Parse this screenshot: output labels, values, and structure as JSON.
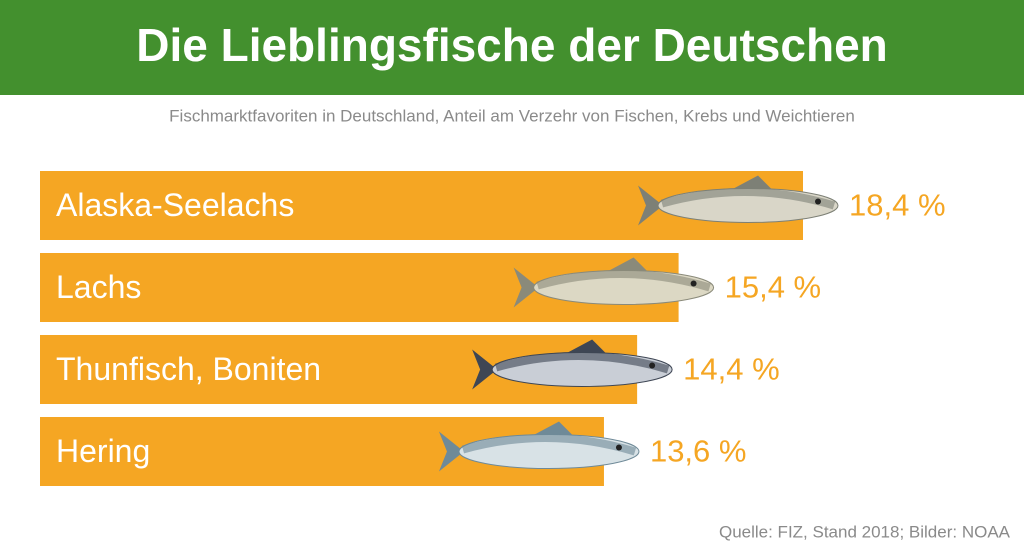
{
  "chart_data": {
    "type": "bar",
    "orientation": "horizontal",
    "title": "Die Lieblingsfische der Deutschen",
    "subtitle": "Fischmarktfavoriten in Deutschland, Anteil am Verzehr von Fischen, Krebs und Weichtieren",
    "categories": [
      "Alaska-Seelachs",
      "Lachs",
      "Thunfisch, Boniten",
      "Hering"
    ],
    "values": [
      18.4,
      15.4,
      14.4,
      13.6
    ],
    "value_labels": [
      "18,4 %",
      "15,4 %",
      "14,4 %",
      "13,6 %"
    ],
    "color": "#f5a623",
    "source": "Quelle: FIZ, Stand 2018; Bilder: NOAA"
  }
}
